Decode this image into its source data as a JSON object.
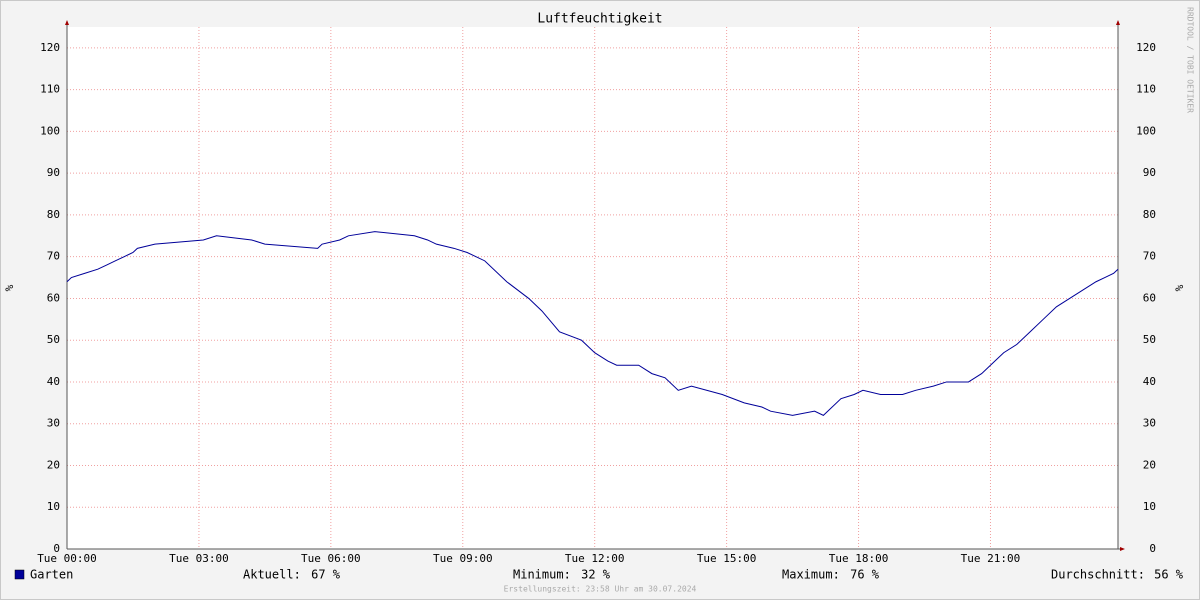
{
  "chart_data": {
    "type": "line",
    "title": "Luftfeuchtigkeit",
    "y_label": "%",
    "watermark": "RRDTOOL / TOBI OETIKER",
    "footer": "Erstellungszeit: 23:58 Uhr am 30.07.2024",
    "xlim": [
      0,
      23.9
    ],
    "xticks": [
      {
        "value": 0,
        "label": "Tue 00:00"
      },
      {
        "value": 3,
        "label": "Tue 03:00"
      },
      {
        "value": 6,
        "label": "Tue 06:00"
      },
      {
        "value": 9,
        "label": "Tue 09:00"
      },
      {
        "value": 12,
        "label": "Tue 12:00"
      },
      {
        "value": 15,
        "label": "Tue 15:00"
      },
      {
        "value": 18,
        "label": "Tue 18:00"
      },
      {
        "value": 21,
        "label": "Tue 21:00"
      }
    ],
    "ylim": [
      0,
      125
    ],
    "yticks": [
      0,
      10,
      20,
      30,
      40,
      50,
      60,
      70,
      80,
      90,
      100,
      110,
      120
    ],
    "grid": true,
    "x": [
      0,
      0.1,
      0.4,
      0.7,
      0.9,
      1.1,
      1.3,
      1.5,
      1.6,
      2.0,
      3.1,
      3.4,
      4.2,
      4.5,
      5.7,
      5.8,
      6.2,
      6.4,
      7.0,
      7.9,
      8.2,
      8.4,
      8.8,
      9.1,
      9.3,
      9.5,
      10.0,
      10.5,
      10.8,
      11.2,
      11.7,
      12.0,
      12.3,
      12.5,
      13.0,
      13.3,
      13.6,
      13.9,
      14.2,
      14.9,
      15.4,
      15.8,
      16.0,
      16.5,
      17.0,
      17.2,
      17.6,
      17.9,
      18.1,
      18.5,
      19.0,
      19.3,
      19.7,
      20.0,
      20.5,
      20.8,
      21.0,
      21.3,
      21.6,
      21.9,
      22.2,
      22.5,
      22.8,
      23.1,
      23.4,
      23.6,
      23.8,
      23.9
    ],
    "series": [
      {
        "name": "Garten",
        "color": "#000099",
        "values": [
          64,
          65,
          66,
          67,
          68,
          69,
          70,
          71,
          72,
          73,
          74,
          75,
          74,
          73,
          72,
          73,
          74,
          75,
          76,
          75,
          74,
          73,
          72,
          71,
          70,
          69,
          64,
          60,
          57,
          52,
          50,
          47,
          45,
          44,
          44,
          42,
          41,
          38,
          39,
          37,
          35,
          34,
          33,
          32,
          33,
          32,
          36,
          37,
          38,
          37,
          37,
          38,
          39,
          40,
          40,
          42,
          44,
          47,
          49,
          52,
          55,
          58,
          60,
          62,
          64,
          65,
          66,
          67
        ]
      }
    ],
    "stats": [
      {
        "label": "Aktuell:",
        "value": "67 %"
      },
      {
        "label": "Minimum:",
        "value": "32 %"
      },
      {
        "label": "Maximum:",
        "value": "76 %"
      },
      {
        "label": "Durchschnitt:",
        "value": "56 %"
      }
    ]
  }
}
